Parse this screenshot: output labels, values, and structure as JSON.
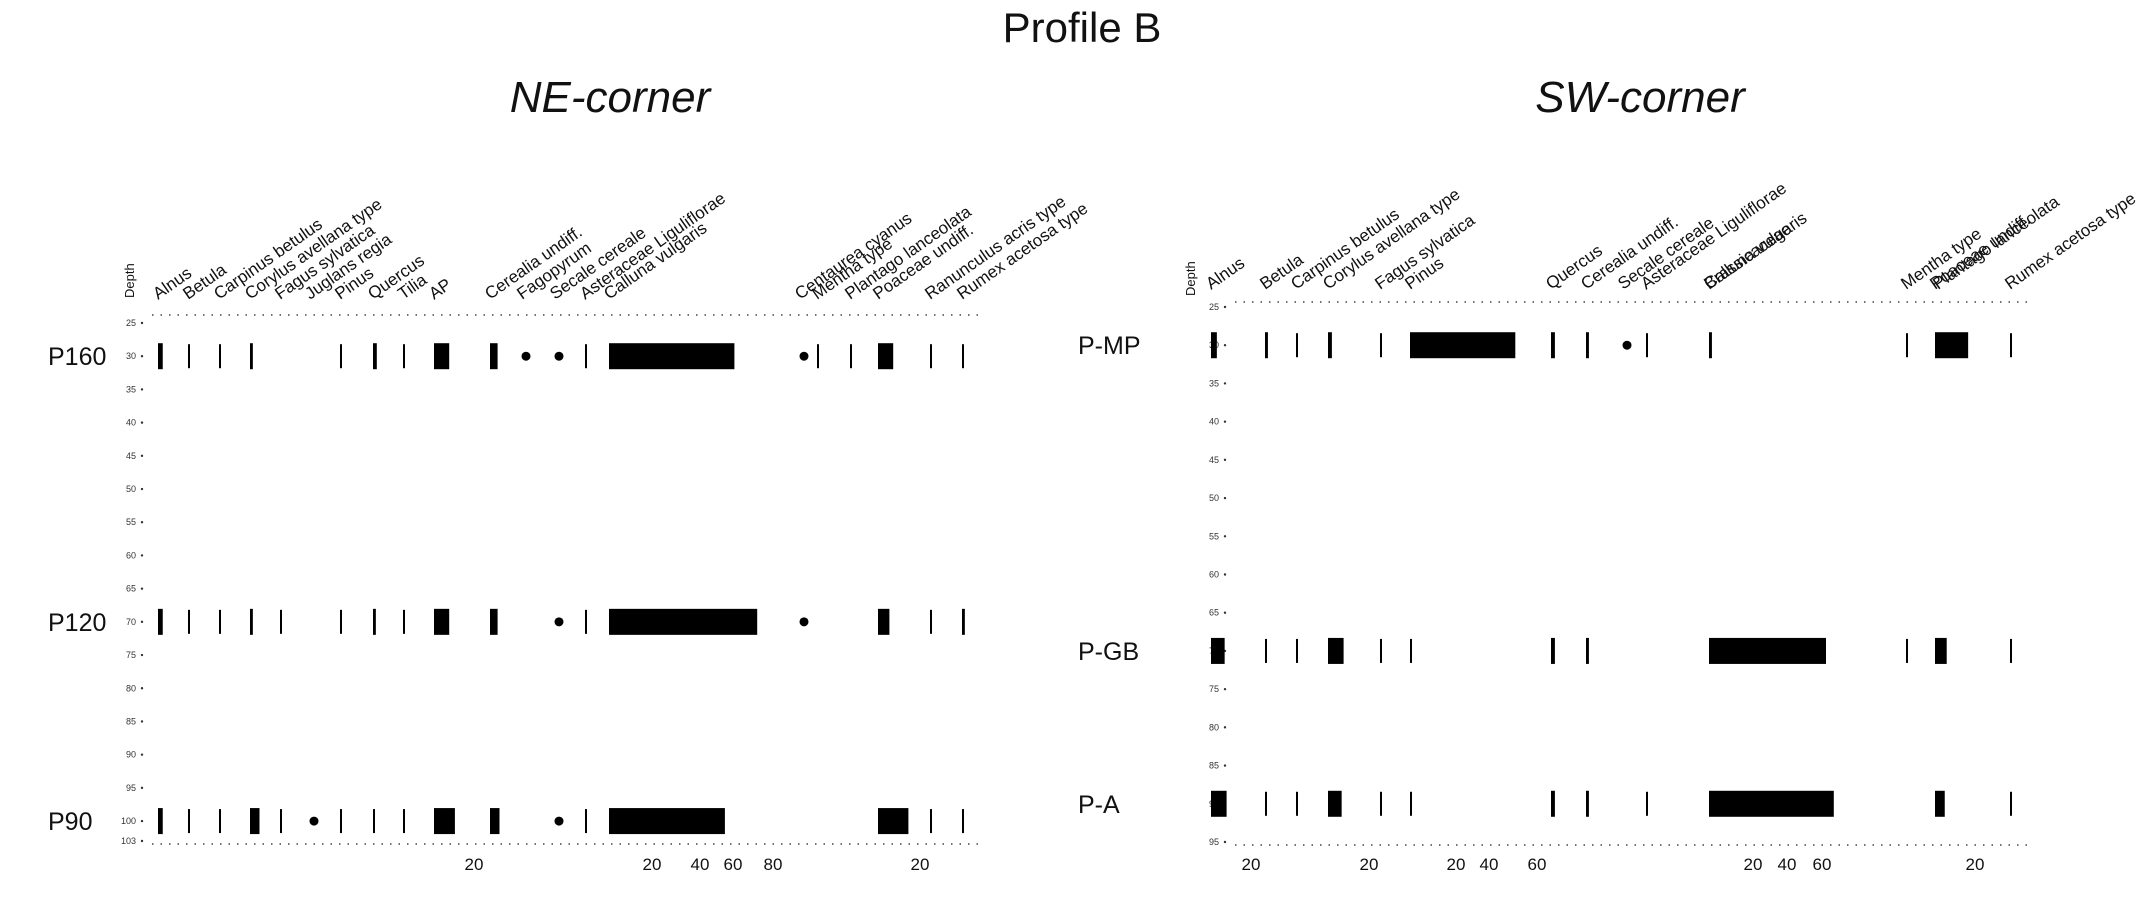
{
  "title": "Profile B",
  "panels": [
    {
      "title": "NE-corner",
      "depth_label": "Depth",
      "depth_ticks": [
        "25",
        "30",
        "35",
        "40",
        "45",
        "50",
        "55",
        "60",
        "65",
        "70",
        "75",
        "80",
        "85",
        "90",
        "95",
        "100",
        "103"
      ],
      "taxa": [
        {
          "name": "Alnus",
          "dir": "down"
        },
        {
          "name": "Betula",
          "dir": "down"
        },
        {
          "name": "Carpinus betulus",
          "dir": "down"
        },
        {
          "name": "Corylus avellana type",
          "dir": "down"
        },
        {
          "name": "Fagus sylvatica",
          "dir": "down"
        },
        {
          "name": "Juglans regia",
          "dir": "down"
        },
        {
          "name": "Pinus",
          "dir": "down"
        },
        {
          "name": "Quercus",
          "dir": "down"
        },
        {
          "name": "Tilia",
          "dir": "down"
        },
        {
          "name": "AP",
          "dir": "down"
        },
        {
          "name": "Cerealia undiff.",
          "dir": "down"
        },
        {
          "name": "Fagopyrum",
          "dir": "down"
        },
        {
          "name": "Secale cereale",
          "dir": "down"
        },
        {
          "name": "Asteraceae Liguliflorae",
          "dir": "down"
        },
        {
          "name": "Calluna vulgaris",
          "dir": "down"
        },
        {
          "name": "Centaurea cyanus",
          "dir": "down"
        },
        {
          "name": "Mentha type",
          "dir": "down"
        },
        {
          "name": "Plantago lanceolata",
          "dir": "down"
        },
        {
          "name": "Poaceae undiff.",
          "dir": "down"
        },
        {
          "name": "Ranunculus acris type",
          "dir": "up"
        },
        {
          "name": "Rumex acetosa type",
          "dir": "down"
        }
      ],
      "samples": [
        {
          "name": "P160",
          "depth": 30,
          "values": {
            "Alnus": 2.5,
            "Betula": 1,
            "Carpinus betulus": 0.5,
            "Corylus avellana type": 1.5,
            "Pinus": 1,
            "Quercus": 2,
            "Tilia": 1,
            "AP": 8,
            "Cerealia undiff.": 4,
            "Fagopyrum": "dot",
            "Secale cereale": "dot",
            "Asteraceae Liguliflorae": 0.5,
            "Calluna vulgaris": 66,
            "Centaurea cyanus": "dot",
            "Mentha type": 0.5,
            "Plantago lanceolata": 0.5,
            "Poaceae undiff.": 8,
            "Ranunculus acris type": 0.5,
            "Rumex acetosa type": 0.5
          }
        },
        {
          "name": "P120",
          "depth": 70,
          "values": {
            "Alnus": 2.5,
            "Betula": 1,
            "Carpinus betulus": 0.5,
            "Corylus avellana type": 1.5,
            "Fagus sylvatica": 0.5,
            "Pinus": 0.5,
            "Quercus": 1.5,
            "Tilia": 1,
            "AP": 8,
            "Cerealia undiff.": 4,
            "Secale cereale": "dot",
            "Asteraceae Liguliflorae": 0.5,
            "Calluna vulgaris": 78,
            "Centaurea cyanus": "dot",
            "Poaceae undiff.": 6,
            "Ranunculus acris type": 0.5,
            "Rumex acetosa type": 1.5
          }
        },
        {
          "name": "P90",
          "depth": 100,
          "values": {
            "Alnus": 2.5,
            "Betula": 1,
            "Carpinus betulus": 0.5,
            "Corylus avellana type": 5,
            "Fagus sylvatica": 0.5,
            "Juglans regia": "dot",
            "Pinus": 1,
            "Quercus": 1,
            "Tilia": 1,
            "AP": 11,
            "Cerealia undiff.": 5,
            "Secale cereale": "dot",
            "Asteraceae Liguliflorae": 0.5,
            "Calluna vulgaris": 61,
            "Poaceae undiff.": 16,
            "Ranunculus acris type": 0.5,
            "Rumex acetosa type": 0.5
          }
        }
      ],
      "scale_labels": [
        "20",
        "20",
        "40",
        "60",
        "80",
        "20"
      ]
    },
    {
      "title": "SW-corner",
      "depth_label": "Depth",
      "depth_ticks": [
        "25",
        "30",
        "35",
        "40",
        "45",
        "50",
        "55",
        "60",
        "65",
        "70",
        "75",
        "80",
        "85",
        "90",
        "95"
      ],
      "taxa": [
        {
          "name": "Alnus",
          "dir": "down"
        },
        {
          "name": "Betula",
          "dir": "down"
        },
        {
          "name": "Carpinus betulus",
          "dir": "down"
        },
        {
          "name": "Corylus avellana type",
          "dir": "down"
        },
        {
          "name": "Fagus sylvatica",
          "dir": "up"
        },
        {
          "name": "Pinus",
          "dir": "up"
        },
        {
          "name": "Quercus",
          "dir": "down"
        },
        {
          "name": "Cerealia undiff.",
          "dir": "down"
        },
        {
          "name": "Secale cereale",
          "dir": "down"
        },
        {
          "name": "Asteraceae Liguliflorae",
          "dir": "down"
        },
        {
          "name": "Brassicaceae",
          "dir": "down"
        },
        {
          "name": "Calluna vulgaris",
          "dir": "down"
        },
        {
          "name": "Mentha type",
          "dir": "down"
        },
        {
          "name": "Plantago lanceolata",
          "dir": "down"
        },
        {
          "name": "Poaceae undiff.",
          "dir": "down"
        },
        {
          "name": "Rumex acetosa type",
          "dir": "down"
        }
      ],
      "samples": [
        {
          "name": "P-MP",
          "depth": 30,
          "values": {
            "Alnus": 3,
            "Betula": 1.5,
            "Carpinus betulus": 0.5,
            "Corylus avellana type": 2,
            "Fagus sylvatica": 0.5,
            "Pinus": 54,
            "Quercus": 2,
            "Cerealia undiff.": 1.5,
            "Secale cereale": "dot",
            "Asteraceae Liguliflorae": 0.5,
            "Brassicaceae": 1.5,
            "Mentha type": 0.5,
            "Plantago lanceolata": "none",
            "Poaceae undiff.": 17,
            "Rumex acetosa type": 0.5
          }
        },
        {
          "name": "P-GB",
          "depth": 70,
          "values": {
            "Alnus": 7,
            "Betula": 1,
            "Carpinus betulus": 0.5,
            "Corylus avellana type": 8,
            "Fagus sylvatica": 1,
            "Pinus": 1,
            "Quercus": 2,
            "Cerealia undiff.": 1.5,
            "Brassicaceae": "none",
            "Calluna vulgaris": 60,
            "Mentha type": 0.5,
            "Poaceae undiff.": 6,
            "Rumex acetosa type": 0.5
          }
        },
        {
          "name": "P-A",
          "depth": 90,
          "values": {
            "Alnus": 8,
            "Betula": 1,
            "Carpinus betulus": 0.5,
            "Corylus avellana type": 7,
            "Fagus sylvatica": 1,
            "Pinus": 0.5,
            "Quercus": 2,
            "Cerealia undiff.": 1.5,
            "Asteraceae Liguliflorae": 0.5,
            "Calluna vulgaris": 64,
            "Poaceae undiff.": 5,
            "Rumex acetosa type": 0.5
          }
        }
      ],
      "scale_labels": [
        "20",
        "20",
        "20",
        "40",
        "60",
        "20",
        "40",
        "60",
        "20"
      ]
    }
  ],
  "chart_data": [
    {
      "type": "bar",
      "title": "NE-corner",
      "ylabel": "Depth",
      "ylim": [
        25,
        103
      ],
      "orientation": "horizontal-silhouette",
      "categories": [
        "Alnus",
        "Betula",
        "Carpinus betulus",
        "Corylus avellana type",
        "Fagus sylvatica",
        "Juglans regia",
        "Pinus",
        "Quercus",
        "Tilia",
        "AP",
        "Cerealia undiff.",
        "Fagopyrum",
        "Secale cereale",
        "Asteraceae Liguliflorae",
        "Calluna vulgaris",
        "Centaurea cyanus",
        "Mentha type",
        "Plantago lanceolata",
        "Poaceae undiff.",
        "Ranunculus acris type",
        "Rumex acetosa type"
      ],
      "series": [
        {
          "name": "P160",
          "depth": 30
        },
        {
          "name": "P120",
          "depth": 70
        },
        {
          "name": "P90",
          "depth": 100
        }
      ]
    },
    {
      "type": "bar",
      "title": "SW-corner",
      "ylabel": "Depth",
      "ylim": [
        25,
        95
      ],
      "orientation": "horizontal-silhouette",
      "categories": [
        "Alnus",
        "Betula",
        "Carpinus betulus",
        "Corylus avellana type",
        "Fagus sylvatica",
        "Pinus",
        "Quercus",
        "Cerealia undiff.",
        "Secale cereale",
        "Asteraceae Liguliflorae",
        "Brassicaceae",
        "Calluna vulgaris",
        "Mentha type",
        "Plantago lanceolata",
        "Poaceae undiff.",
        "Rumex acetosa type"
      ],
      "series": [
        {
          "name": "P-MP",
          "depth": 30
        },
        {
          "name": "P-GB",
          "depth": 70
        },
        {
          "name": "P-A",
          "depth": 90
        }
      ]
    }
  ]
}
